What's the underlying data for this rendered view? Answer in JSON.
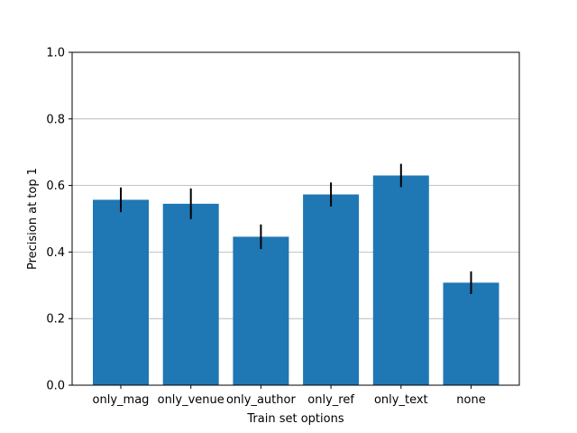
{
  "chart_data": {
    "type": "bar",
    "title": "",
    "xlabel": "Train set options",
    "ylabel": "Precision at top 1",
    "categories": [
      "only_mag",
      "only_venue",
      "only_author",
      "only_ref",
      "only_text",
      "none"
    ],
    "values": [
      0.557,
      0.545,
      0.446,
      0.573,
      0.63,
      0.308
    ],
    "errors": [
      0.037,
      0.046,
      0.037,
      0.036,
      0.035,
      0.034
    ],
    "ylim": [
      0,
      1.0
    ],
    "yticks": [
      "0.0",
      "0.2",
      "0.4",
      "0.6",
      "0.8",
      "1.0"
    ],
    "ytick_values": [
      0,
      0.2,
      0.4,
      0.6,
      0.8,
      1.0
    ],
    "grid": "y-axis",
    "legend": "none",
    "bar_color": "#1f77b4",
    "error_color": "#000000",
    "grid_color": "#b0b0b0"
  }
}
